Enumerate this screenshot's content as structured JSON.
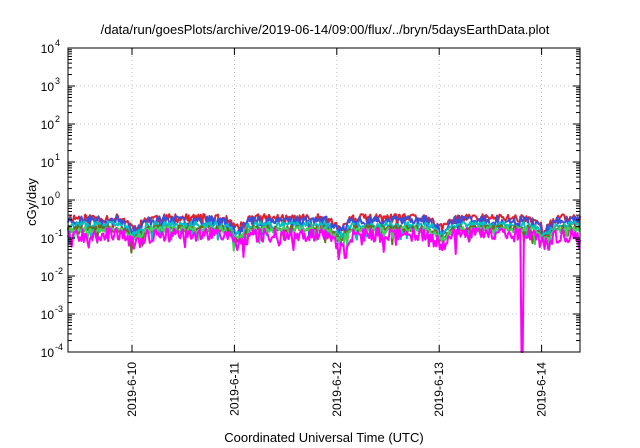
{
  "chart_data": {
    "type": "line",
    "title": "/data/run/goesPlots/archive/2019-06-14/09:00/flux/../bryn/5daysEarthData.plot",
    "xlabel": "Coordinated Universal Time (UTC)",
    "ylabel": "cGy/day",
    "yscale": "log",
    "ylim": [
      0.0001,
      10000
    ],
    "y_ticks": [
      {
        "base": "10",
        "exp": "-4",
        "value": 0.0001
      },
      {
        "base": "10",
        "exp": "-3",
        "value": 0.001
      },
      {
        "base": "10",
        "exp": "-2",
        "value": 0.01
      },
      {
        "base": "10",
        "exp": "-1",
        "value": 0.1
      },
      {
        "base": "10",
        "exp": "0",
        "value": 1
      },
      {
        "base": "10",
        "exp": "1",
        "value": 10
      },
      {
        "base": "10",
        "exp": "2",
        "value": 100
      },
      {
        "base": "10",
        "exp": "3",
        "value": 1000
      },
      {
        "base": "10",
        "exp": "4",
        "value": 10000
      }
    ],
    "xlim": [
      "2019-06-09T09:00",
      "2019-06-14T09:00"
    ],
    "x_ticks": [
      {
        "label": "2019-6-10",
        "date": "2019-06-10T00:00"
      },
      {
        "label": "2019-6-11",
        "date": "2019-06-11T00:00"
      },
      {
        "label": "2019-6-12",
        "date": "2019-06-12T00:00"
      },
      {
        "label": "2019-6-13",
        "date": "2019-06-13T00:00"
      },
      {
        "label": "2019-6-14",
        "date": "2019-06-14T00:00"
      }
    ],
    "grid": true,
    "legend": "none",
    "series": [
      {
        "color": "#e0202a",
        "level": 0.34,
        "spread": 0.25,
        "seed": 11
      },
      {
        "color": "#3a4fd8",
        "level": 0.3,
        "spread": 0.28,
        "seed": 23
      },
      {
        "color": "#00c0c0",
        "level": 0.22,
        "spread": 0.22,
        "seed": 37
      },
      {
        "color": "#6a6a20",
        "level": 0.18,
        "spread": 0.2,
        "seed": 41
      },
      {
        "color": "#40d060",
        "level": 0.17,
        "spread": 0.18,
        "seed": 53
      },
      {
        "color": "#ff00ff",
        "level": 0.13,
        "spread": 0.4,
        "seed": 67
      }
    ],
    "dips": [
      {
        "series": "#ff00ff",
        "date": "2019-06-12T02:00",
        "value": 0.03
      },
      {
        "series": "#ff00ff",
        "date": "2019-06-13T19:30",
        "value": 0.0001
      }
    ]
  }
}
